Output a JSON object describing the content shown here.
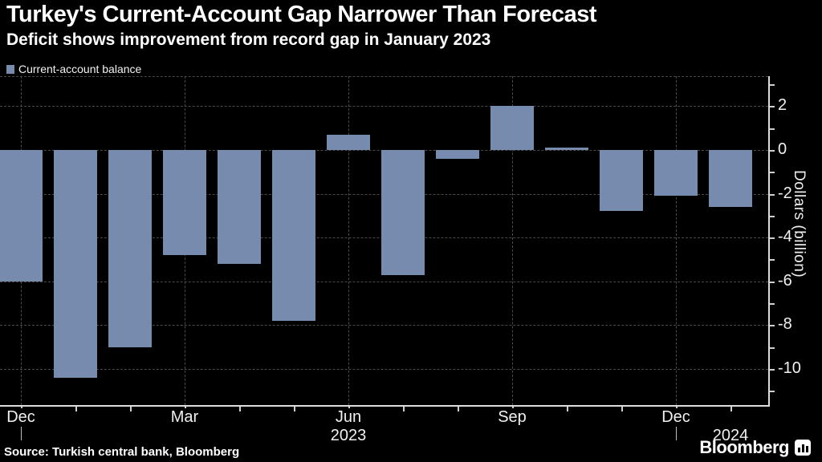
{
  "header": {
    "title": "Turkey's Current-Account Gap Narrower Than Forecast",
    "subtitle": "Deficit shows improvement from record gap in January 2023"
  },
  "legend": {
    "label": "Current-account balance",
    "swatch_color": "#768bad"
  },
  "chart_data": {
    "type": "bar",
    "title": "Turkey's Current-Account Gap Narrower Than Forecast",
    "subtitle": "Deficit shows improvement from record gap in January 2023",
    "series_name": "Current-account balance",
    "categories": [
      "Dec 2022",
      "Jan 2023",
      "Feb 2023",
      "Mar 2023",
      "Apr 2023",
      "May 2023",
      "Jun 2023",
      "Jul 2023",
      "Aug 2023",
      "Sep 2023",
      "Oct 2023",
      "Nov 2023",
      "Dec 2023",
      "Jan 2024"
    ],
    "values": [
      -6.0,
      -10.4,
      -9.0,
      -4.8,
      -5.2,
      -7.8,
      0.7,
      -5.7,
      -0.4,
      2.0,
      0.1,
      -2.8,
      -2.1,
      -2.6
    ],
    "xlabel": "",
    "ylabel": "Dollars (billion)",
    "ylim": [
      -11.65,
      3.37
    ],
    "y_major_ticks": [
      2,
      0,
      -2,
      -4,
      -6,
      -8,
      -10
    ],
    "y_minor_ticks": [
      3,
      1,
      -1,
      -3,
      -5,
      -7,
      -9,
      -11
    ],
    "x_tick_labels": [
      {
        "index": 0,
        "label": "Dec"
      },
      {
        "index": 3,
        "label": "Mar"
      },
      {
        "index": 6,
        "label": "Jun"
      },
      {
        "index": 9,
        "label": "Sep"
      },
      {
        "index": 12,
        "label": "Dec"
      }
    ],
    "year_labels": [
      {
        "index": 6,
        "label": "2023"
      },
      {
        "index": 13,
        "label": "2024"
      }
    ],
    "year_divider_indices": [
      0,
      12
    ],
    "grid": true,
    "legend_position": "top-left",
    "bar_color": "#768bad",
    "background": "#000000"
  },
  "footer": {
    "source": "Source: Turkish central bank, Bloomberg",
    "brand": "Bloomberg"
  }
}
